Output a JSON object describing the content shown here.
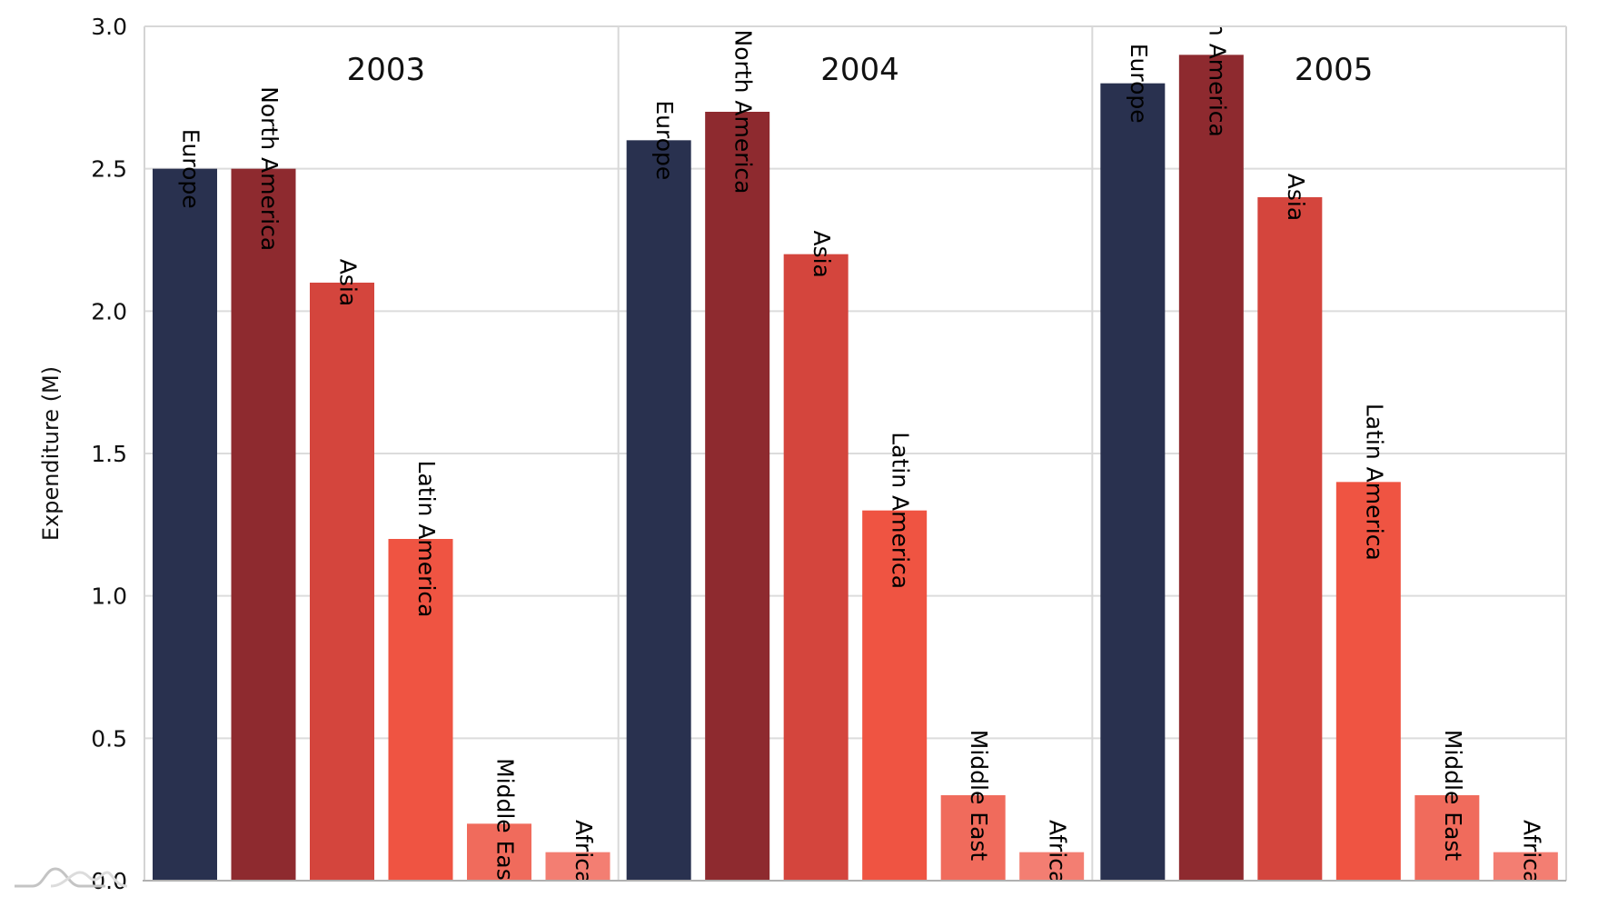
{
  "chart_data": {
    "type": "bar",
    "title": "",
    "xlabel": "",
    "ylabel": "Expenditure (M)",
    "ylim": [
      0,
      3.0
    ],
    "yticks": [
      "0.0",
      "0.5",
      "1.0",
      "1.5",
      "2.0",
      "2.5",
      "3.0"
    ],
    "grid": true,
    "legend": "none",
    "bar_labels": "rotated category names at bar tops",
    "categories": [
      "Europe",
      "North America",
      "Asia",
      "Latin America",
      "Middle East",
      "Africa"
    ],
    "colors": {
      "Europe": "#29314F",
      "North America": "#8E2A2F",
      "Asia": "#D4453D",
      "Latin America": "#EF5442",
      "Middle East": "#F06B5C",
      "Africa": "#F37E72"
    },
    "panels": [
      {
        "title": "2003",
        "values": [
          2.5,
          2.5,
          2.1,
          1.2,
          0.2,
          0.1
        ]
      },
      {
        "title": "2004",
        "values": [
          2.6,
          2.7,
          2.2,
          1.3,
          0.3,
          0.1
        ]
      },
      {
        "title": "2005",
        "values": [
          2.8,
          2.9,
          2.4,
          1.4,
          0.3,
          0.1
        ]
      }
    ]
  },
  "logo": {
    "icon": "wave-logo-icon"
  }
}
